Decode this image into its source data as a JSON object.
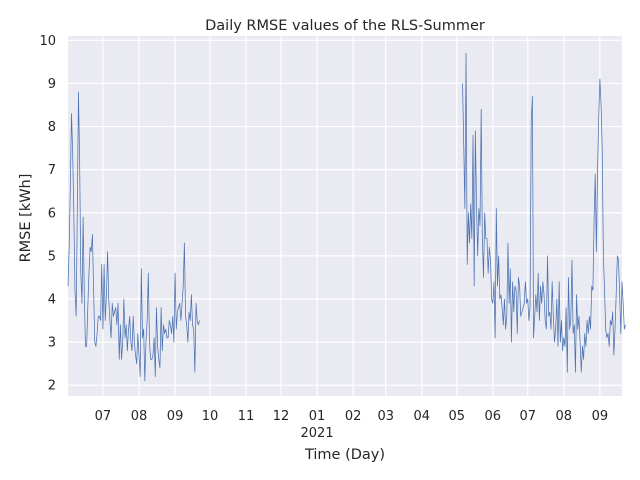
{
  "chart_data": {
    "type": "line",
    "title": "Daily RMSE values of the RLS-Summer",
    "xlabel": "Time (Day)",
    "ylabel": "RMSE [kWh]",
    "ylim": [
      1.75,
      10.1
    ],
    "yticks": [
      2,
      3,
      4,
      5,
      6,
      7,
      8,
      9,
      10
    ],
    "xlim": [
      "2020-06-01",
      "2021-09-20"
    ],
    "xticks": [
      {
        "date": "2020-07-01",
        "label": "07"
      },
      {
        "date": "2020-08-01",
        "label": "08"
      },
      {
        "date": "2020-09-01",
        "label": "09"
      },
      {
        "date": "2020-10-01",
        "label": "10"
      },
      {
        "date": "2020-11-01",
        "label": "11"
      },
      {
        "date": "2020-12-01",
        "label": "12"
      },
      {
        "date": "2021-01-01",
        "label": "01",
        "sublabel": "2021"
      },
      {
        "date": "2021-02-01",
        "label": "02"
      },
      {
        "date": "2021-03-01",
        "label": "03"
      },
      {
        "date": "2021-04-01",
        "label": "04"
      },
      {
        "date": "2021-05-01",
        "label": "05"
      },
      {
        "date": "2021-06-01",
        "label": "06"
      },
      {
        "date": "2021-07-01",
        "label": "07"
      },
      {
        "date": "2021-08-01",
        "label": "08"
      },
      {
        "date": "2021-09-01",
        "label": "09"
      }
    ],
    "grid": true,
    "background": "#eaeaf2",
    "line_color": "#4c72b0",
    "series": [
      {
        "start": "2020-06-01",
        "values": [
          4.3,
          5.2,
          6.6,
          8.3,
          7.4,
          6.0,
          4.2,
          3.6,
          6.1,
          8.8,
          7.2,
          4.6,
          3.9,
          5.9,
          4.1,
          2.9,
          2.9,
          3.8,
          4.6,
          5.2,
          5.1,
          5.5,
          4.2,
          3.0,
          2.9,
          3.2,
          3.6,
          3.6,
          3.5,
          4.8,
          3.3,
          4.8,
          3.5,
          4.1,
          5.1,
          4.0,
          3.5,
          3.1,
          3.9,
          3.6,
          3.7,
          3.8,
          3.4,
          3.9,
          2.6,
          3.4,
          2.6,
          3.0,
          4.0,
          3.1,
          3.4,
          2.8,
          3.3,
          3.6,
          3.0,
          2.8,
          3.6,
          3.0,
          2.7,
          2.5,
          3.2,
          2.7,
          2.2,
          4.7,
          3.1,
          3.3,
          2.1,
          3.0,
          3.5,
          4.6,
          3.0,
          2.6,
          2.6,
          2.7,
          3.1,
          2.2,
          3.8,
          2.9,
          2.6,
          2.4,
          3.8,
          2.8,
          3.4,
          3.2,
          3.3,
          3.1,
          3.1,
          3.5,
          3.4,
          3.2,
          3.6,
          3.0,
          4.6,
          3.3,
          3.7,
          3.8,
          3.9,
          3.5,
          3.9,
          4.3,
          5.3,
          3.6,
          3.4,
          3.0,
          3.7,
          3.5,
          4.1,
          3.4,
          3.3,
          2.3,
          3.9,
          3.5,
          3.4,
          3.5
        ]
      },
      {
        "start": "2021-05-06",
        "values": [
          9.0,
          7.6,
          6.1,
          9.7,
          4.8,
          6.0,
          5.3,
          6.2,
          5.4,
          7.8,
          4.3,
          7.9,
          6.2,
          5.0,
          6.1,
          5.7,
          8.4,
          5.4,
          4.5,
          6.0,
          5.4,
          5.4,
          4.6,
          5.2,
          4.9,
          4.0,
          3.9,
          4.4,
          3.1,
          6.1,
          4.3,
          5.0,
          4.0,
          4.1,
          3.8,
          3.4,
          4.0,
          3.3,
          3.6,
          5.3,
          3.9,
          4.7,
          3.0,
          4.4,
          3.7,
          4.3,
          4.2,
          3.2,
          4.5,
          4.3,
          3.6,
          3.7,
          3.8,
          3.9,
          4.4,
          3.9,
          4.0,
          3.5,
          3.8,
          8.1,
          8.7,
          3.1,
          3.6,
          4.1,
          3.7,
          4.6,
          3.5,
          4.3,
          3.9,
          4.4,
          4.1,
          3.5,
          3.3,
          5.0,
          3.6,
          3.7,
          3.3,
          4.4,
          3.6,
          3.0,
          3.3,
          4.0,
          2.9,
          4.4,
          3.0,
          3.5,
          2.8,
          3.1,
          2.9,
          3.8,
          2.3,
          4.5,
          3.3,
          3.5,
          4.9,
          3.2,
          3.4,
          2.3,
          4.1,
          3.3,
          3.6,
          3.0,
          2.3,
          2.9,
          2.6,
          3.2,
          2.9,
          3.5,
          3.2,
          3.6,
          3.3,
          4.3,
          4.2,
          5.8,
          6.9,
          5.1,
          7.0,
          8.2,
          9.1,
          8.5,
          7.5,
          5.0,
          4.2,
          3.3,
          3.1,
          3.2,
          2.9,
          3.5,
          3.4,
          3.7,
          2.7,
          3.3,
          4.1,
          5.0,
          4.9,
          4.1,
          3.2,
          4.4,
          3.9,
          3.3,
          3.4
        ]
      }
    ]
  }
}
